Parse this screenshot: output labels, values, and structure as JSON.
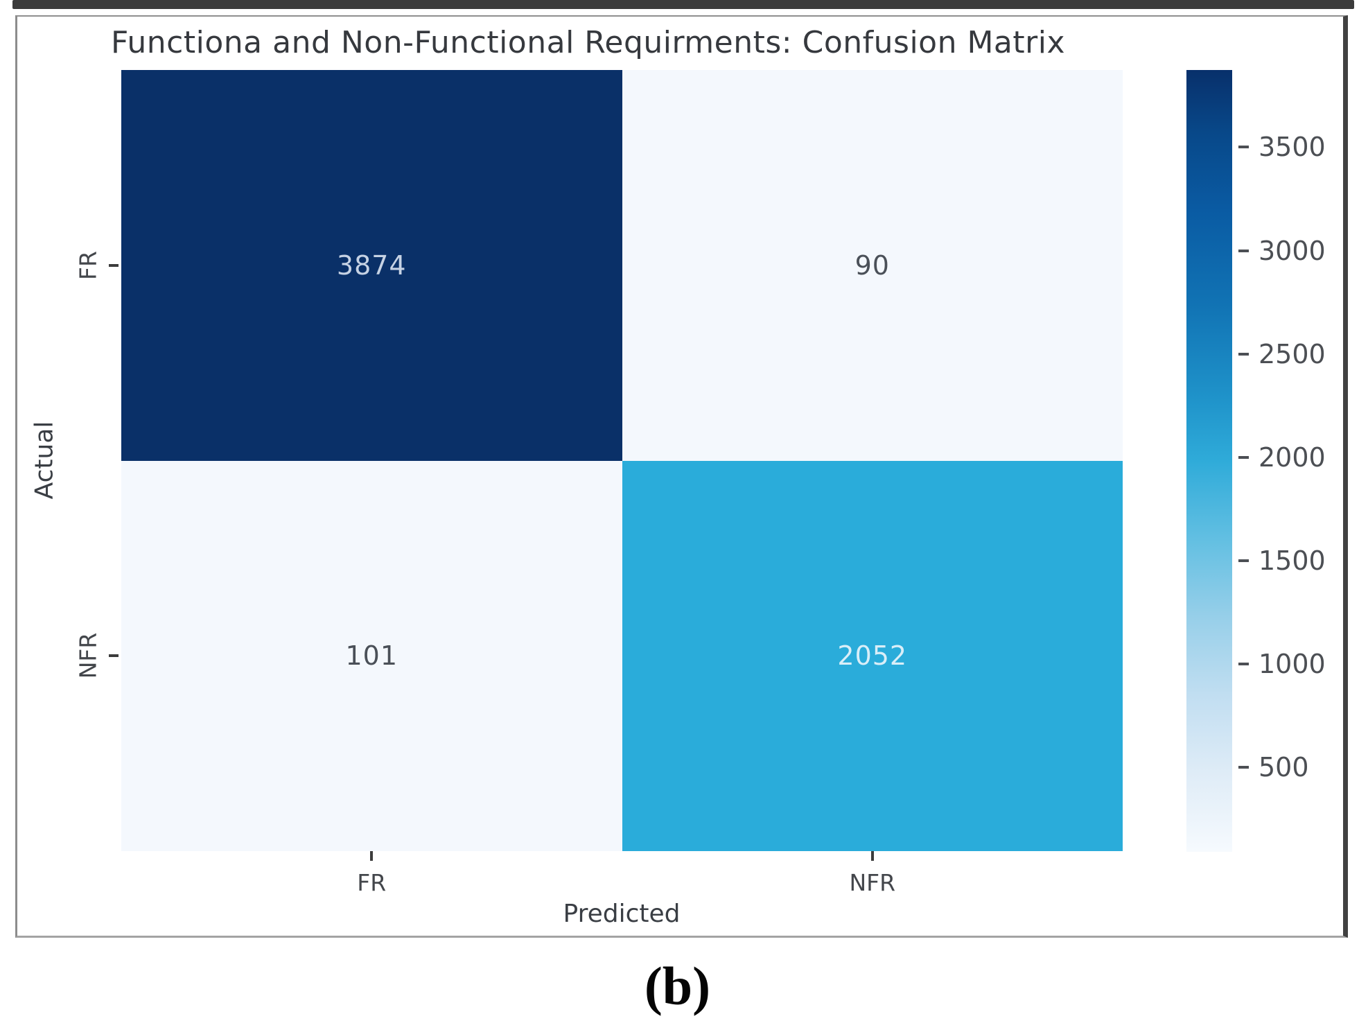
{
  "page": {
    "caption": "(b)"
  },
  "chart_data": {
    "type": "heatmap",
    "title": "Functiona and Non-Functional Requirments: Confusion Matrix",
    "xlabel": "Predicted",
    "ylabel": "Actual",
    "x_categories": [
      "FR",
      "NFR"
    ],
    "y_categories": [
      "FR",
      "NFR"
    ],
    "rows": [
      {
        "actual": "FR",
        "values": [
          3874,
          90
        ]
      },
      {
        "actual": "NFR",
        "values": [
          101,
          2052
        ]
      }
    ],
    "cell_colors": [
      [
        "#0a3068",
        "#f4f8fd"
      ],
      [
        "#f4f8fd",
        "#2aacda"
      ]
    ],
    "cell_text_colors": [
      [
        "#c6d2e4",
        "#4a5058"
      ],
      [
        "#4a5058",
        "#d9eef8"
      ]
    ],
    "colorbar": {
      "position": "right",
      "colormap": "Blues",
      "vmin": 90,
      "vmax": 3874,
      "ticks": [
        3500,
        3000,
        2500,
        2000,
        1500,
        1000,
        500
      ]
    },
    "legend": "none",
    "grid": false
  },
  "colors": {
    "dark_cell": "#0a3068",
    "light_cell": "#f4f8fd",
    "mid_cell": "#2aacda",
    "frame_border": "#8c8c8c",
    "text_primary": "#36393e"
  }
}
